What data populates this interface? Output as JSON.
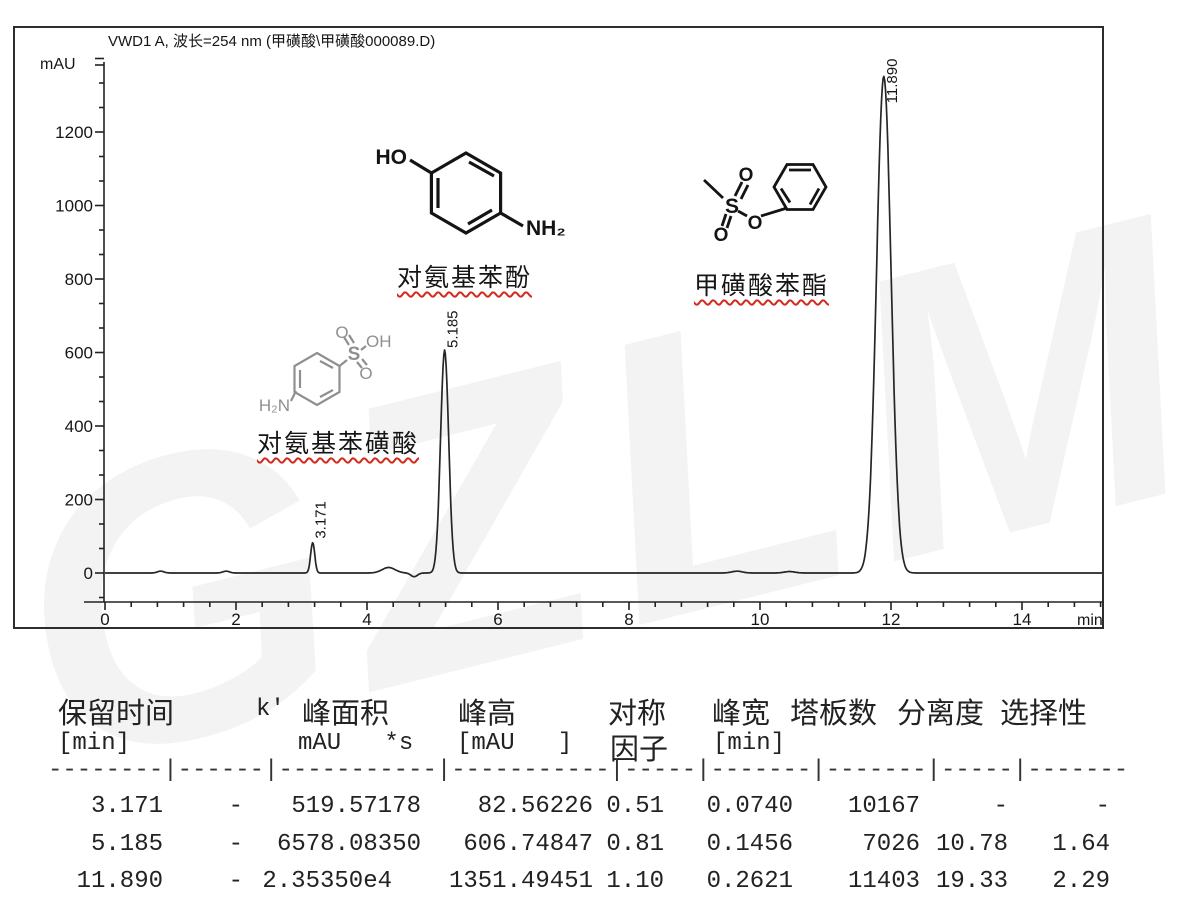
{
  "title": "VWD1 A, 波长=254 nm (甲磺酸\\甲磺酸000089.D)",
  "watermark": "GZLM",
  "axes": {
    "y_unit": "mAU",
    "x_unit": "min",
    "y_ticks": [
      0,
      200,
      400,
      600,
      800,
      1000,
      1200
    ],
    "x_ticks": [
      0,
      2,
      4,
      6,
      8,
      10,
      12,
      14
    ]
  },
  "structures": {
    "aminophenol": {
      "label": "对氨基苯酚",
      "atom_ho": "HO",
      "atom_nh2": "NH₂"
    },
    "mesylate": {
      "label": "甲磺酸苯酯",
      "atom_s": "S",
      "atom_o_top": "O",
      "atom_o_left": "O",
      "atom_o_bridge": "O"
    },
    "sulfanilic": {
      "label": "对氨基苯磺酸",
      "atom_h2n": "H₂N",
      "atom_s": "S",
      "atom_o_up": "O",
      "atom_oh": "OH",
      "atom_o_down": "O"
    }
  },
  "chart_data": {
    "type": "line",
    "title": "VWD1 A, 波长=254 nm (甲磺酸\\甲磺酸000089.D)",
    "xlabel": "min",
    "ylabel": "mAU",
    "xlim": [
      0,
      15.24
    ],
    "ylim": [
      -70,
      1400
    ],
    "x_ticks": [
      0,
      2,
      4,
      6,
      8,
      10,
      12,
      14
    ],
    "y_ticks": [
      0,
      200,
      400,
      600,
      800,
      1000,
      1200
    ],
    "grid": false,
    "peaks": [
      {
        "rt": 3.171,
        "height_mAU": 82.56226,
        "width_min": 0.074,
        "label": "3.171",
        "compound": "对氨基苯磺酸"
      },
      {
        "rt": 5.185,
        "height_mAU": 606.74847,
        "width_min": 0.1456,
        "label": "5.185",
        "compound": "对氨基苯酚"
      },
      {
        "rt": 11.89,
        "height_mAU": 1351.49451,
        "width_min": 0.2621,
        "label": "11.890",
        "compound": "甲磺酸苯酯"
      }
    ],
    "baseline_features": [
      {
        "rt": 0.85,
        "height_mAU": 5,
        "sigma": 0.05
      },
      {
        "rt": 1.85,
        "height_mAU": 5,
        "sigma": 0.05
      },
      {
        "rt": 4.33,
        "height_mAU": 15,
        "sigma": 0.1
      },
      {
        "rt": 4.72,
        "height_mAU": -10,
        "sigma": 0.05
      },
      {
        "rt": 9.65,
        "height_mAU": 5,
        "sigma": 0.08
      },
      {
        "rt": 10.45,
        "height_mAU": 4,
        "sigma": 0.08
      }
    ]
  },
  "table": {
    "headers": [
      "保留时间",
      "k'",
      "峰面积",
      "峰高",
      "对称",
      "峰宽",
      "塔板数",
      "分离度",
      "选择性"
    ],
    "units": [
      "[min]",
      "mAU   *s",
      "[mAU   ]",
      "因子",
      "[min]"
    ],
    "separator": "--------|------|-----------|-----------|-----|-------|-------|-----|-------",
    "rows": [
      [
        "3.171",
        "-",
        "519.57178",
        "82.56226",
        "0.51",
        "0.0740",
        "10167",
        "-",
        "-"
      ],
      [
        "5.185",
        "-",
        "6578.08350",
        "606.74847",
        "0.81",
        "0.1456",
        "7026",
        "10.78",
        "1.64"
      ],
      [
        "11.890",
        "-",
        "2.35350e4",
        "1351.49451",
        "1.10",
        "0.2621",
        "11403",
        "19.33",
        "2.29"
      ]
    ]
  }
}
